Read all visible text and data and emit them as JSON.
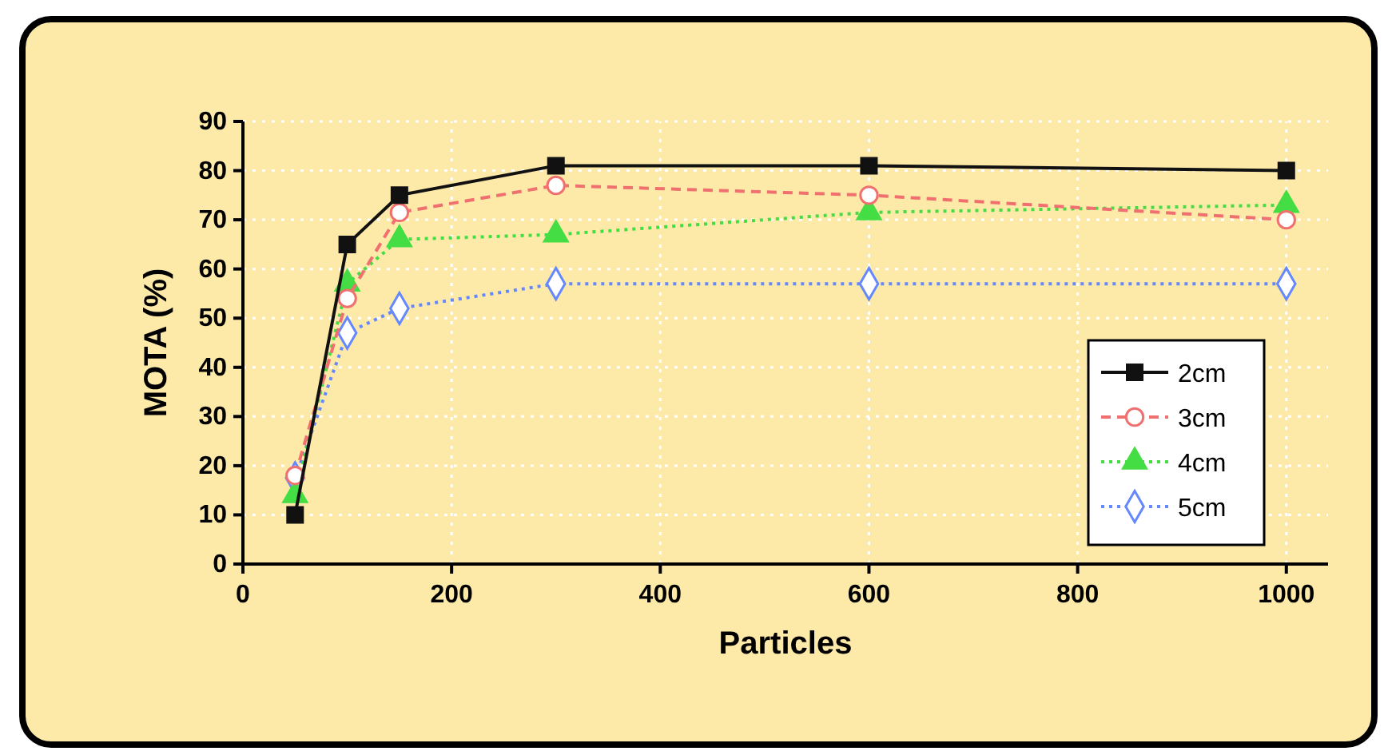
{
  "chart_data": {
    "type": "line",
    "xlabel": "Particles",
    "ylabel": "MOTA (%)",
    "x": [
      50,
      100,
      150,
      300,
      600,
      1000
    ],
    "xlim": [
      0,
      1040
    ],
    "xticks": [
      0,
      200,
      400,
      600,
      800,
      1000
    ],
    "ylim": [
      0,
      90
    ],
    "yticks": [
      0,
      10,
      20,
      30,
      40,
      50,
      60,
      70,
      80,
      90
    ],
    "grid": true,
    "legend": "bottom right",
    "series": [
      {
        "name": "2cm",
        "color": "#111111",
        "marker": "square",
        "line_style": "solid",
        "values": [
          10,
          65,
          75,
          81,
          81,
          80
        ]
      },
      {
        "name": "3cm",
        "color": "#f07070",
        "marker": "circle",
        "line_style": "dashed",
        "values": [
          18,
          54,
          71.5,
          77,
          75,
          70
        ]
      },
      {
        "name": "4cm",
        "color": "#44dd44",
        "marker": "triangle",
        "line_style": "dotted",
        "values": [
          14,
          57,
          66,
          67,
          71.5,
          73
        ]
      },
      {
        "name": "5cm",
        "color": "#6688ff",
        "marker": "diamond",
        "line_style": "dotted",
        "values": [
          17.5,
          47,
          52,
          57,
          57,
          57
        ]
      }
    ]
  }
}
